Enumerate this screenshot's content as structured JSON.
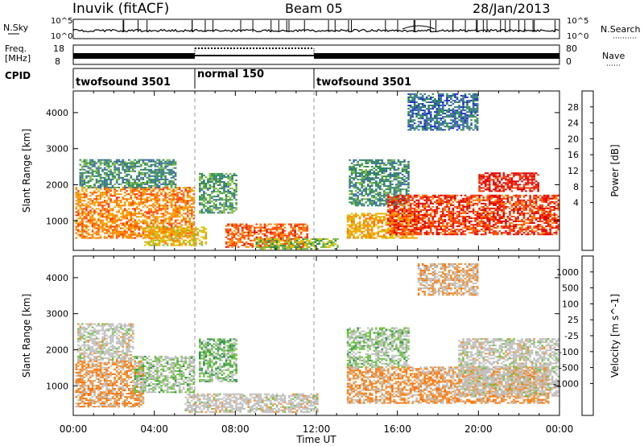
{
  "header": {
    "station": "Inuvik (fitACF)",
    "beam": "Beam 05",
    "date": "28/Jan/2013"
  },
  "strips": {
    "nsky_label": "N.Sky",
    "nsky_ticks": [
      "10^5",
      "10^0"
    ],
    "nsearch_label": "N.Search",
    "freq_label_1": "Freq.",
    "freq_label_2": "[MHz]",
    "freq_ticks": [
      "18",
      "8"
    ],
    "nave_ticks": [
      "80",
      "0"
    ],
    "nave_label": "Nave",
    "cpid_label": "CPID",
    "cpid_segments": [
      {
        "label": "twofsound 3501",
        "start_hour": 0,
        "end_hour": 6
      },
      {
        "label": "normal 150",
        "start_hour": 6,
        "end_hour": 12
      },
      {
        "label": "twofsound 3501",
        "start_hour": 12,
        "end_hour": 24
      }
    ]
  },
  "axes": {
    "xlabel": "Time UT",
    "x_ticks": [
      "00:00",
      "04:00",
      "08:00",
      "12:00",
      "16:00",
      "20:00",
      "00:00"
    ],
    "ylabel": "Slant Range [km]",
    "y_ticks": [
      "1000",
      "2000",
      "3000",
      "4000"
    ]
  },
  "power_colorbar": {
    "label": "Power [dB]",
    "ticks": [
      "28",
      "24",
      "20",
      "16",
      "12",
      "8",
      "4"
    ],
    "colors": [
      "#e00000",
      "#ff3a00",
      "#ff7a00",
      "#f2a400",
      "#d8c400",
      "#7cba40",
      "#2e8f50",
      "#3a6ea0",
      "#1f2fd0",
      "#0000ff"
    ]
  },
  "velocity_colorbar": {
    "label": "Velocity [m s^-1]",
    "ticks": [
      "1000",
      "500",
      "100",
      "25",
      "-25",
      "-100",
      "-500",
      "-1000"
    ],
    "colors": [
      "#1b2fb0",
      "#2f6fa0",
      "#2f8f4f",
      "#6cc040",
      "#c0c0c0",
      "#c0c0c0",
      "#f09030",
      "#ff7000",
      "#ff3000",
      "#ff0000"
    ]
  },
  "chart_data": [
    {
      "type": "heatmap",
      "title": "Power [dB]",
      "xlabel": "Time UT",
      "ylabel": "Slant Range [km]",
      "xlim": [
        0,
        24
      ],
      "ylim": [
        180,
        4600
      ],
      "value_range": [
        0,
        30
      ],
      "regions": [
        {
          "t0": 0.1,
          "t1": 5.9,
          "r0": 500,
          "r1": 1900,
          "value": 22
        },
        {
          "t0": 0.3,
          "t1": 5.0,
          "r0": 1900,
          "r1": 2700,
          "value": 10
        },
        {
          "t0": 3.5,
          "t1": 6.5,
          "r0": 300,
          "r1": 800,
          "value": 18
        },
        {
          "t0": 6.2,
          "t1": 8.0,
          "r0": 1200,
          "r1": 2300,
          "value": 11
        },
        {
          "t0": 7.5,
          "t1": 11.5,
          "r0": 250,
          "r1": 900,
          "value": 24
        },
        {
          "t0": 9.0,
          "t1": 13.0,
          "r0": 200,
          "r1": 500,
          "value": 14
        },
        {
          "t0": 13.6,
          "t1": 16.5,
          "r0": 1400,
          "r1": 2700,
          "value": 10
        },
        {
          "t0": 13.5,
          "t1": 17.0,
          "r0": 500,
          "r1": 1200,
          "value": 20
        },
        {
          "t0": 15.5,
          "t1": 24.0,
          "r0": 600,
          "r1": 1700,
          "value": 26
        },
        {
          "t0": 20.0,
          "t1": 23.0,
          "r0": 1800,
          "r1": 2300,
          "value": 28
        },
        {
          "t0": 16.5,
          "t1": 20.0,
          "r0": 3500,
          "r1": 4500,
          "value": 8
        }
      ]
    },
    {
      "type": "heatmap",
      "title": "Velocity [m s^-1]",
      "xlabel": "Time UT",
      "ylabel": "Slant Range [km]",
      "xlim": [
        0,
        24
      ],
      "ylim": [
        180,
        4600
      ],
      "value_range": [
        -1000,
        1000
      ],
      "regions": [
        {
          "t0": 0.1,
          "t1": 3.5,
          "r0": 400,
          "r1": 1700,
          "value": -300
        },
        {
          "t0": 0.2,
          "t1": 3.0,
          "r0": 1700,
          "r1": 2700,
          "value": 0
        },
        {
          "t0": 3.0,
          "t1": 5.9,
          "r0": 800,
          "r1": 1800,
          "value": 200
        },
        {
          "t0": 6.2,
          "t1": 8.0,
          "r0": 1100,
          "r1": 2300,
          "value": 300
        },
        {
          "t0": 5.5,
          "t1": 12.0,
          "r0": 250,
          "r1": 750,
          "value": 0
        },
        {
          "t0": 13.5,
          "t1": 16.5,
          "r0": 1500,
          "r1": 2600,
          "value": 200
        },
        {
          "t0": 13.5,
          "t1": 23.5,
          "r0": 500,
          "r1": 1500,
          "value": -300
        },
        {
          "t0": 19.0,
          "t1": 24.0,
          "r0": 700,
          "r1": 2300,
          "value": 0
        },
        {
          "t0": 17.0,
          "t1": 20.0,
          "r0": 3500,
          "r1": 4400,
          "value": -200
        }
      ]
    }
  ]
}
